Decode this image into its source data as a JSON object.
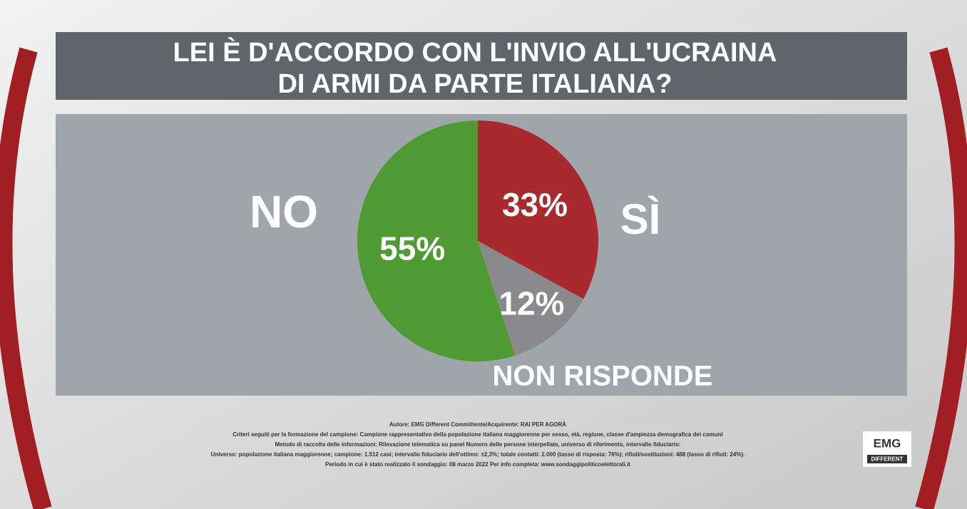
{
  "chart_data": {
    "type": "pie",
    "title": "LEI È D'ACCORDO CON L'INVIO ALL'UCRAINA DI ARMI DA PARTE ITALIANA?",
    "categories": [
      "SÌ",
      "NON RISPONDE",
      "NO"
    ],
    "values": [
      33,
      12,
      55
    ],
    "value_labels": [
      "33%",
      "12%",
      "55%"
    ],
    "colors": [
      "#a82a2e",
      "#8a8a8c",
      "#4f9a32"
    ]
  },
  "footer": [
    "Autore: EMG Different Committente/Acquirente: RAI PER AGORÀ",
    "Criteri seguiti per la formazione del campione: Campione rappresentativo della popolazione italiana maggiorenne per sesso, età, regione, classe d'ampiezza demografica dei comuni",
    "Metodo di raccolta delle informazioni: Rilevazione telematica su panel Numero delle persone interpellate, universo di riferimento, intervallo fiduciario:",
    "Universo: popolazione italiana maggiorenne; campione: 1.512 casi; intervallo fiduciario dell'ottimo: ±2,3%; totale contatti: 2.000 (tasso di risposta: 76%); rifiuti/sostituzioni: 488 (tasso di rifiuti: 24%).",
    "Periodo in cui è stato realizzato il sondaggio: 08 marzo 2022 Per info completa: www.sondaggipoliticoelettorali.it"
  ],
  "logo": {
    "top": "EMG",
    "bottom": "DIFFERENT"
  }
}
